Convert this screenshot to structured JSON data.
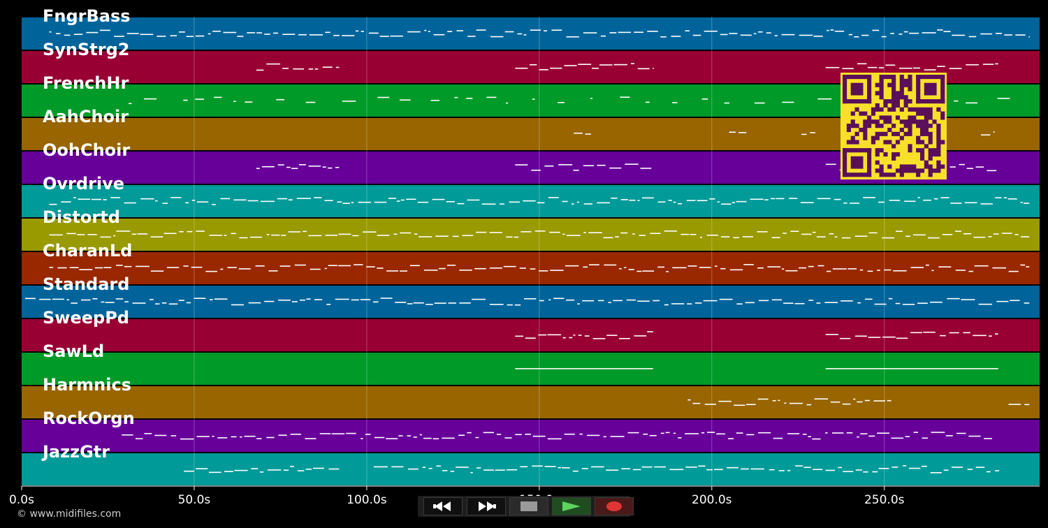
{
  "tracks": [
    {
      "name": "FngrBass",
      "color": "#00649a"
    },
    {
      "name": "SynStrg2",
      "color": "#980033"
    },
    {
      "name": "FrenchHr",
      "color": "#009a28"
    },
    {
      "name": "AahChoir",
      "color": "#986500"
    },
    {
      "name": "OohChoir",
      "color": "#660099"
    },
    {
      "name": "Ovrdrive",
      "color": "#009a98"
    },
    {
      "name": "Distortd",
      "color": "#999900"
    },
    {
      "name": "CharanLd",
      "color": "#992800"
    },
    {
      "name": "Standard",
      "color": "#00649a"
    },
    {
      "name": "SweepPd",
      "color": "#980033"
    },
    {
      "name": "SawLd",
      "color": "#009a28"
    },
    {
      "name": "Harmnics",
      "color": "#986500"
    },
    {
      "name": "RockOrgn",
      "color": "#660099"
    },
    {
      "name": "JazzGtr",
      "color": "#009a98"
    }
  ],
  "timeline": {
    "ticks": [
      "0.0s",
      "50.0s",
      "100.0s",
      "150.0s",
      "200.0s",
      "250.0s"
    ],
    "tick_seconds": [
      0,
      50,
      100,
      150,
      200,
      250
    ],
    "end_seconds": 295
  },
  "copyright": "© www.midifiles.com",
  "transport": {
    "rewind": "rewind-icon",
    "fast_forward": "fast-forward-icon",
    "stop": "stop-icon",
    "play": "play-icon",
    "record": "record-icon",
    "play_color": "#4caf50",
    "record_color": "#d32f2f"
  },
  "qr_code": {
    "color": "#f8e02a",
    "module_color": "#5a0f5a"
  }
}
